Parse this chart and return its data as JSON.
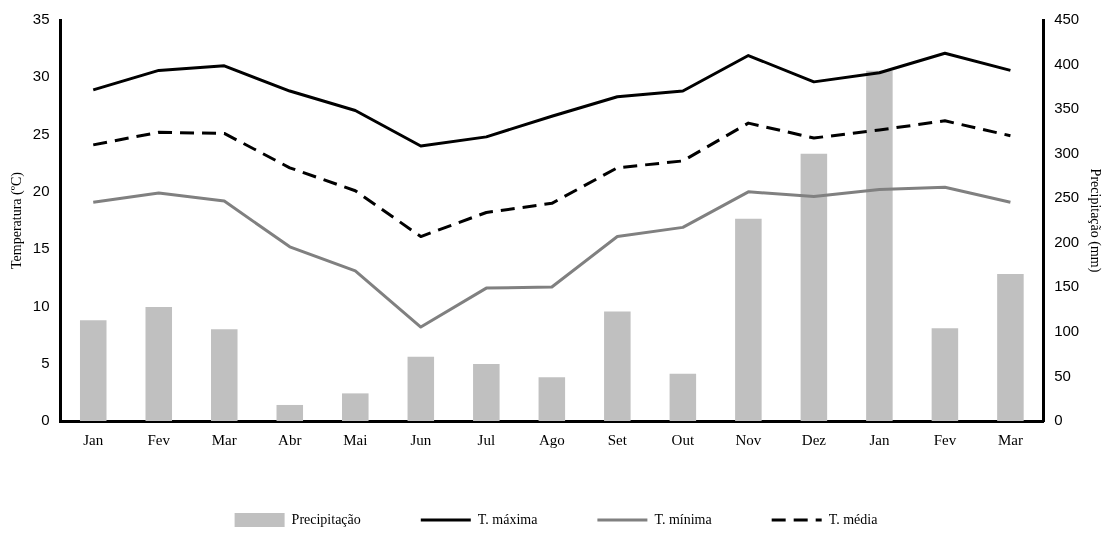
{
  "chart_data": {
    "type": "line",
    "ylabel": "Temperatura (ºC)",
    "y2label": "Precipitação (mm)",
    "categories": [
      "Jan",
      "Fev",
      "Mar",
      "Abr",
      "Mai",
      "Jun",
      "Jul",
      "Ago",
      "Set",
      "Out",
      "Nov",
      "Dez",
      "Jan",
      "Fev",
      "Mar"
    ],
    "ylim": [
      0,
      35
    ],
    "yticks": [
      0,
      5,
      10,
      15,
      20,
      25,
      30,
      35
    ],
    "y2lim": [
      0,
      450
    ],
    "y2ticks": [
      0,
      50,
      100,
      150,
      200,
      250,
      300,
      350,
      400,
      450
    ],
    "grid": false,
    "legend": "bottom",
    "marker": "none",
    "series": [
      {
        "name": "Precipitação",
        "type": "bar",
        "axis": "y2",
        "color": "#c0c0c0",
        "values": [
          113,
          128,
          103,
          18,
          31,
          72,
          64,
          49,
          123,
          53,
          227,
          300,
          393,
          104,
          165
        ]
      },
      {
        "name": "T. máxima",
        "color": "#000000",
        "line_style": "solid",
        "values": [
          28.9,
          30.6,
          31.0,
          28.8,
          27.1,
          24.0,
          24.8,
          26.6,
          28.3,
          28.8,
          31.9,
          29.6,
          30.4,
          32.1,
          30.6
        ]
      },
      {
        "name": "T. mínima",
        "color": "#808080",
        "line_style": "solid",
        "values": [
          19.1,
          19.9,
          19.2,
          15.2,
          13.1,
          8.2,
          11.6,
          11.7,
          16.1,
          16.9,
          20.0,
          19.6,
          20.2,
          20.4,
          19.1
        ]
      },
      {
        "name": "T. média",
        "color": "#000000",
        "line_style": "dashed",
        "values": [
          24.1,
          25.2,
          25.1,
          22.1,
          20.1,
          16.1,
          18.2,
          19.0,
          22.1,
          22.7,
          26.0,
          24.7,
          25.4,
          26.2,
          24.9
        ]
      }
    ]
  }
}
